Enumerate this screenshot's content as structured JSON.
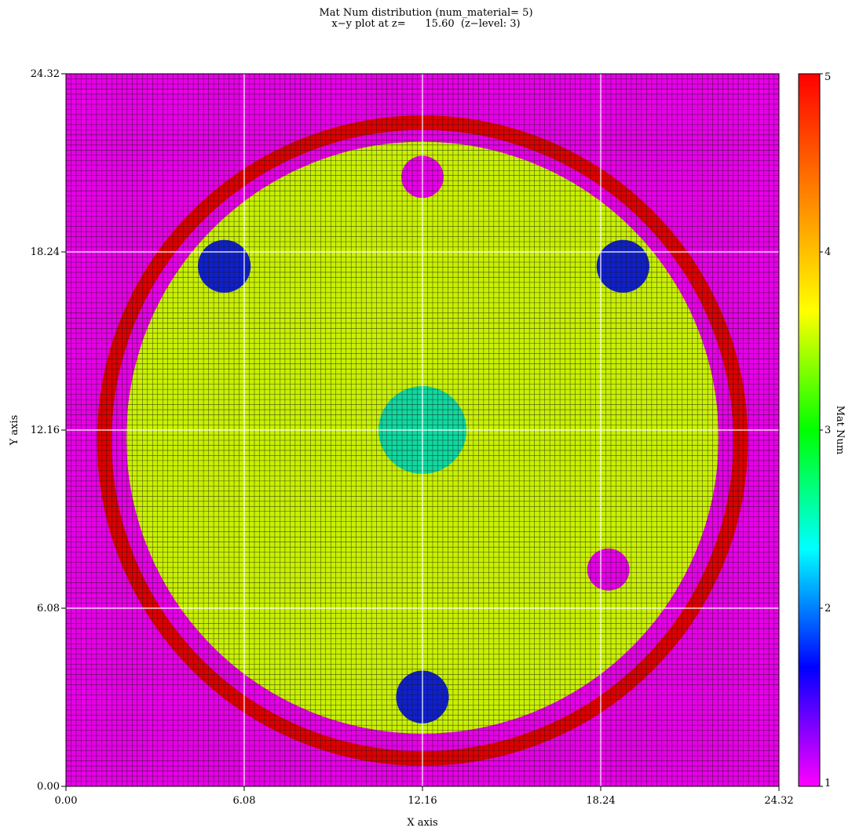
{
  "chart_data": {
    "type": "heatmap",
    "title": "Mat Num distribution (num_material= 5)",
    "subtitle": "x−y plot at z=      15.60  (z−level: 3)",
    "xlabel": "X axis",
    "ylabel": "Y axis",
    "xlim": [
      0.0,
      24.32
    ],
    "ylim": [
      0.0,
      24.32
    ],
    "x_ticks": [
      "0.00",
      "6.08",
      "12.16",
      "18.24",
      "24.32"
    ],
    "y_ticks": [
      "0.00",
      "6.08",
      "12.16",
      "18.24",
      "24.32"
    ],
    "x_tick_values": [
      0.0,
      6.08,
      12.16,
      18.24,
      24.32
    ],
    "y_tick_values": [
      0.0,
      6.08,
      12.16,
      18.24,
      24.32
    ],
    "grid_cells": 140,
    "colorbar": {
      "label": "Mat Num",
      "min": 1,
      "max": 5,
      "ticks": [
        "1",
        "2",
        "3",
        "4",
        "5"
      ],
      "tick_values": [
        1,
        2,
        3,
        4,
        5
      ],
      "colors": [
        "#ff00ff",
        "#0000ff",
        "#00ffff",
        "#00ff00",
        "#ffff00",
        "#ff8000",
        "#ff0000"
      ]
    },
    "material_colors": {
      "1": "#e600e6",
      "2": "#1020c8",
      "3": "#10d8a0",
      "4": "#c8f000",
      "5": "#dc0000"
    },
    "regions": [
      {
        "material": 1,
        "shape": "background"
      },
      {
        "material": 5,
        "shape": "ring",
        "center": [
          12.16,
          11.8
        ],
        "r_outer": 11.1,
        "r_inner": 10.6
      },
      {
        "material": 4,
        "shape": "circle",
        "center": [
          12.16,
          11.9
        ],
        "r": 10.1
      },
      {
        "material": 3,
        "shape": "circle",
        "center": [
          12.16,
          12.16
        ],
        "r": 1.5
      },
      {
        "material": 2,
        "shape": "circle",
        "center": [
          5.4,
          17.75
        ],
        "r": 0.9
      },
      {
        "material": 2,
        "shape": "circle",
        "center": [
          19.0,
          17.75
        ],
        "r": 0.9
      },
      {
        "material": 2,
        "shape": "circle",
        "center": [
          12.16,
          3.05
        ],
        "r": 0.9
      },
      {
        "material": 1,
        "shape": "circle",
        "center": [
          12.16,
          20.8
        ],
        "r": 0.72
      },
      {
        "material": 1,
        "shape": "circle",
        "center": [
          18.5,
          7.4
        ],
        "r": 0.72
      }
    ],
    "grid": true
  }
}
